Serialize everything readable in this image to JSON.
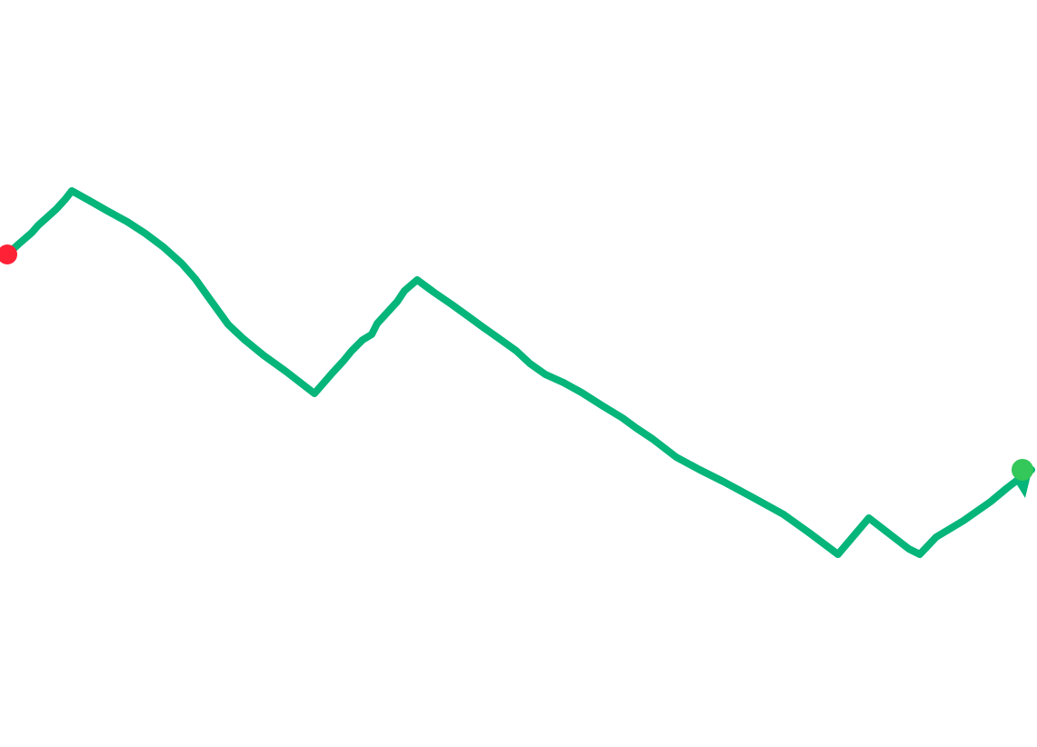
{
  "route": {
    "line_color": "#05b57a",
    "start_marker_color": "#ff2237",
    "end_marker_color": "#34c759"
  }
}
